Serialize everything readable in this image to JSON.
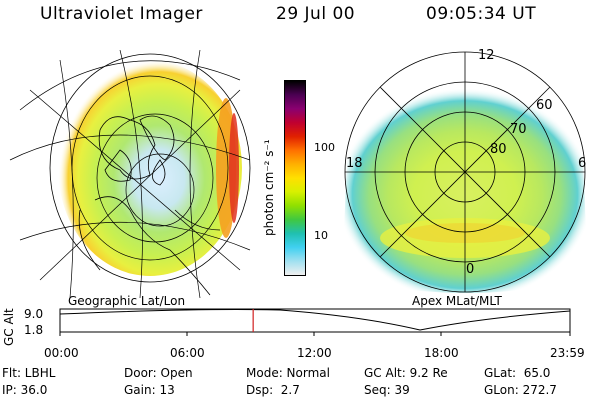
{
  "header": {
    "title": "Ultraviolet Imager",
    "date": "29 Jul 00",
    "time": "09:05:34 UT"
  },
  "panels": {
    "geo_caption": "Geographic Lat/Lon",
    "mlt_caption": "Apex MLat/MLT",
    "mlt_hour_labels": {
      "top": "12",
      "left": "18",
      "right": "6",
      "bottom": "0"
    },
    "mlt_lat_labels": [
      "60",
      "70",
      "80"
    ]
  },
  "colorbar": {
    "unit": "photon cm⁻² s⁻¹",
    "ticks": [
      "100",
      "10"
    ],
    "colors": [
      "#000000",
      "#4b0052",
      "#8a0070",
      "#c00030",
      "#e02000",
      "#ff7000",
      "#ffb000",
      "#ffe000",
      "#d8f000",
      "#90e000",
      "#40c840",
      "#20c0b0",
      "#40d0f0",
      "#a0e0f0",
      "#f0f0f0"
    ]
  },
  "timeline": {
    "axis_label": "GC Alt",
    "y_ticks": [
      "9.0",
      "1.8"
    ],
    "x_ticks": [
      "00:00",
      "06:00",
      "12:00",
      "18:00",
      "23:59"
    ],
    "current_marker_time": "09:05",
    "marker_color": "#d02020"
  },
  "info": {
    "flt": "Flt: LBHL",
    "ip": "IP: 36.0",
    "door": "Door: Open",
    "gain": "Gain: 13",
    "mode": "Mode: Normal",
    "dsp": "Dsp:  2.7",
    "gc_alt": "GC Alt: 9.2 Re",
    "seq": "Seq: 39",
    "glat": "GLat:  65.0",
    "glon": "GLon: 272.7"
  }
}
